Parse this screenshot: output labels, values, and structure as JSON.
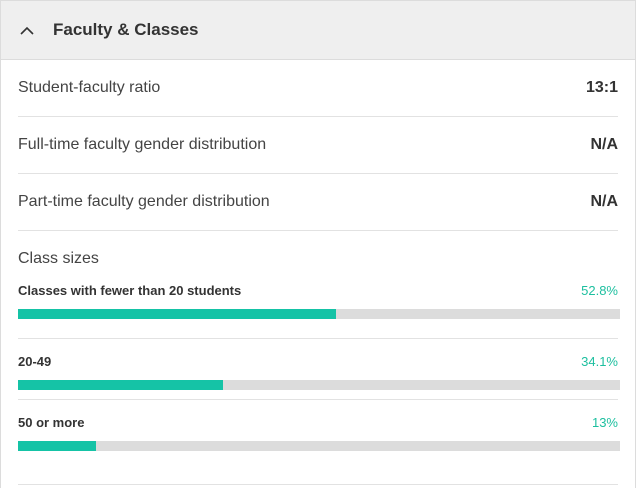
{
  "section": {
    "title": "Faculty & Classes",
    "toggle_icon": "chevron-up-icon"
  },
  "stats": [
    {
      "label": "Student-faculty ratio",
      "value": "13:1"
    },
    {
      "label": "Full-time faculty gender distribution",
      "value": "N/A"
    },
    {
      "label": "Part-time faculty gender distribution",
      "value": "N/A"
    }
  ],
  "class_sizes": {
    "title": "Class sizes",
    "items": [
      {
        "label": "Classes with fewer than 20 students",
        "percent_text": "52.8%",
        "percent": 52.8
      },
      {
        "label": "20-49",
        "percent_text": "34.1%",
        "percent": 34.1
      },
      {
        "label": "50 or more",
        "percent_text": "13%",
        "percent": 13
      }
    ]
  },
  "colors": {
    "accent": "#15c3a6",
    "accent_text": "#1dbf9f",
    "track": "#dcdcdc",
    "header_bg": "#efefef"
  }
}
